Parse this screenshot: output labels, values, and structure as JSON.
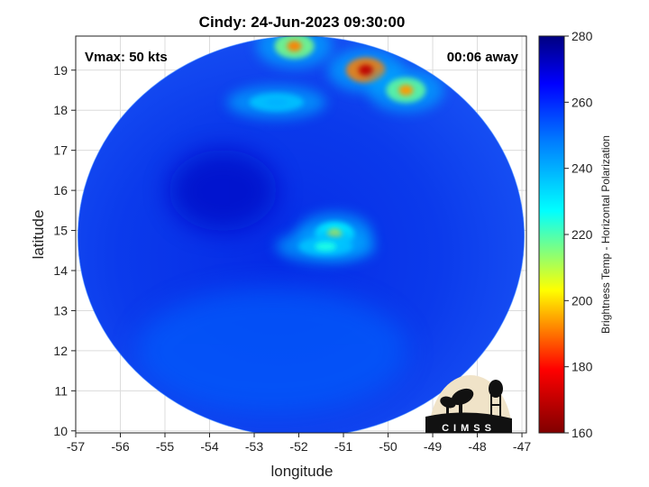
{
  "chart_data": {
    "type": "heatmap",
    "title": "Cindy: 24-Jun-2023 09:30:00",
    "xlabel": "longitude",
    "ylabel": "latitude",
    "xlim": [
      -57,
      -46.9
    ],
    "ylim": [
      9.95,
      19.85
    ],
    "x_ticks": [
      -57,
      -56,
      -55,
      -54,
      -53,
      -52,
      -51,
      -50,
      -49,
      -48,
      -47
    ],
    "y_ticks": [
      10,
      11,
      12,
      13,
      14,
      15,
      16,
      17,
      18,
      19
    ],
    "grid": true,
    "annotations": {
      "vmax": "Vmax: 50 kts",
      "time_offset": "00:06 away"
    },
    "footprint": {
      "center_lon": -51.95,
      "center_lat": 14.85,
      "radius_deg": 5.0
    },
    "colorbar": {
      "label": "Brightness Temp - Horizontal Polarization",
      "min": 160,
      "max": 280,
      "ticks": [
        160,
        180,
        200,
        220,
        240,
        260,
        280
      ],
      "colormap": [
        "#800000",
        "#ff0000",
        "#ffff00",
        "#00ffff",
        "#0080ff",
        "#0000ff",
        "#000080"
      ]
    },
    "background_tb": 262,
    "features": [
      {
        "lon": -51.2,
        "lat": 14.9,
        "tb": 200,
        "kind": "eyewall convection"
      },
      {
        "lon": -51.4,
        "lat": 14.6,
        "tb": 218,
        "kind": "convective band"
      },
      {
        "lon": -50.5,
        "lat": 19.0,
        "tb": 170,
        "kind": "deep convection"
      },
      {
        "lon": -49.6,
        "lat": 18.5,
        "tb": 192,
        "kind": "convection"
      },
      {
        "lon": -52.1,
        "lat": 19.6,
        "tb": 190,
        "kind": "convection"
      },
      {
        "lon": -52.5,
        "lat": 18.2,
        "tb": 236,
        "kind": "rainband"
      },
      {
        "lon": -53.7,
        "lat": 16.0,
        "tb": 268,
        "kind": "cold dry region"
      }
    ]
  },
  "logo": {
    "text": "CIMSS",
    "colors": {
      "background": "#f0e3c8",
      "ink": "#111111"
    }
  }
}
